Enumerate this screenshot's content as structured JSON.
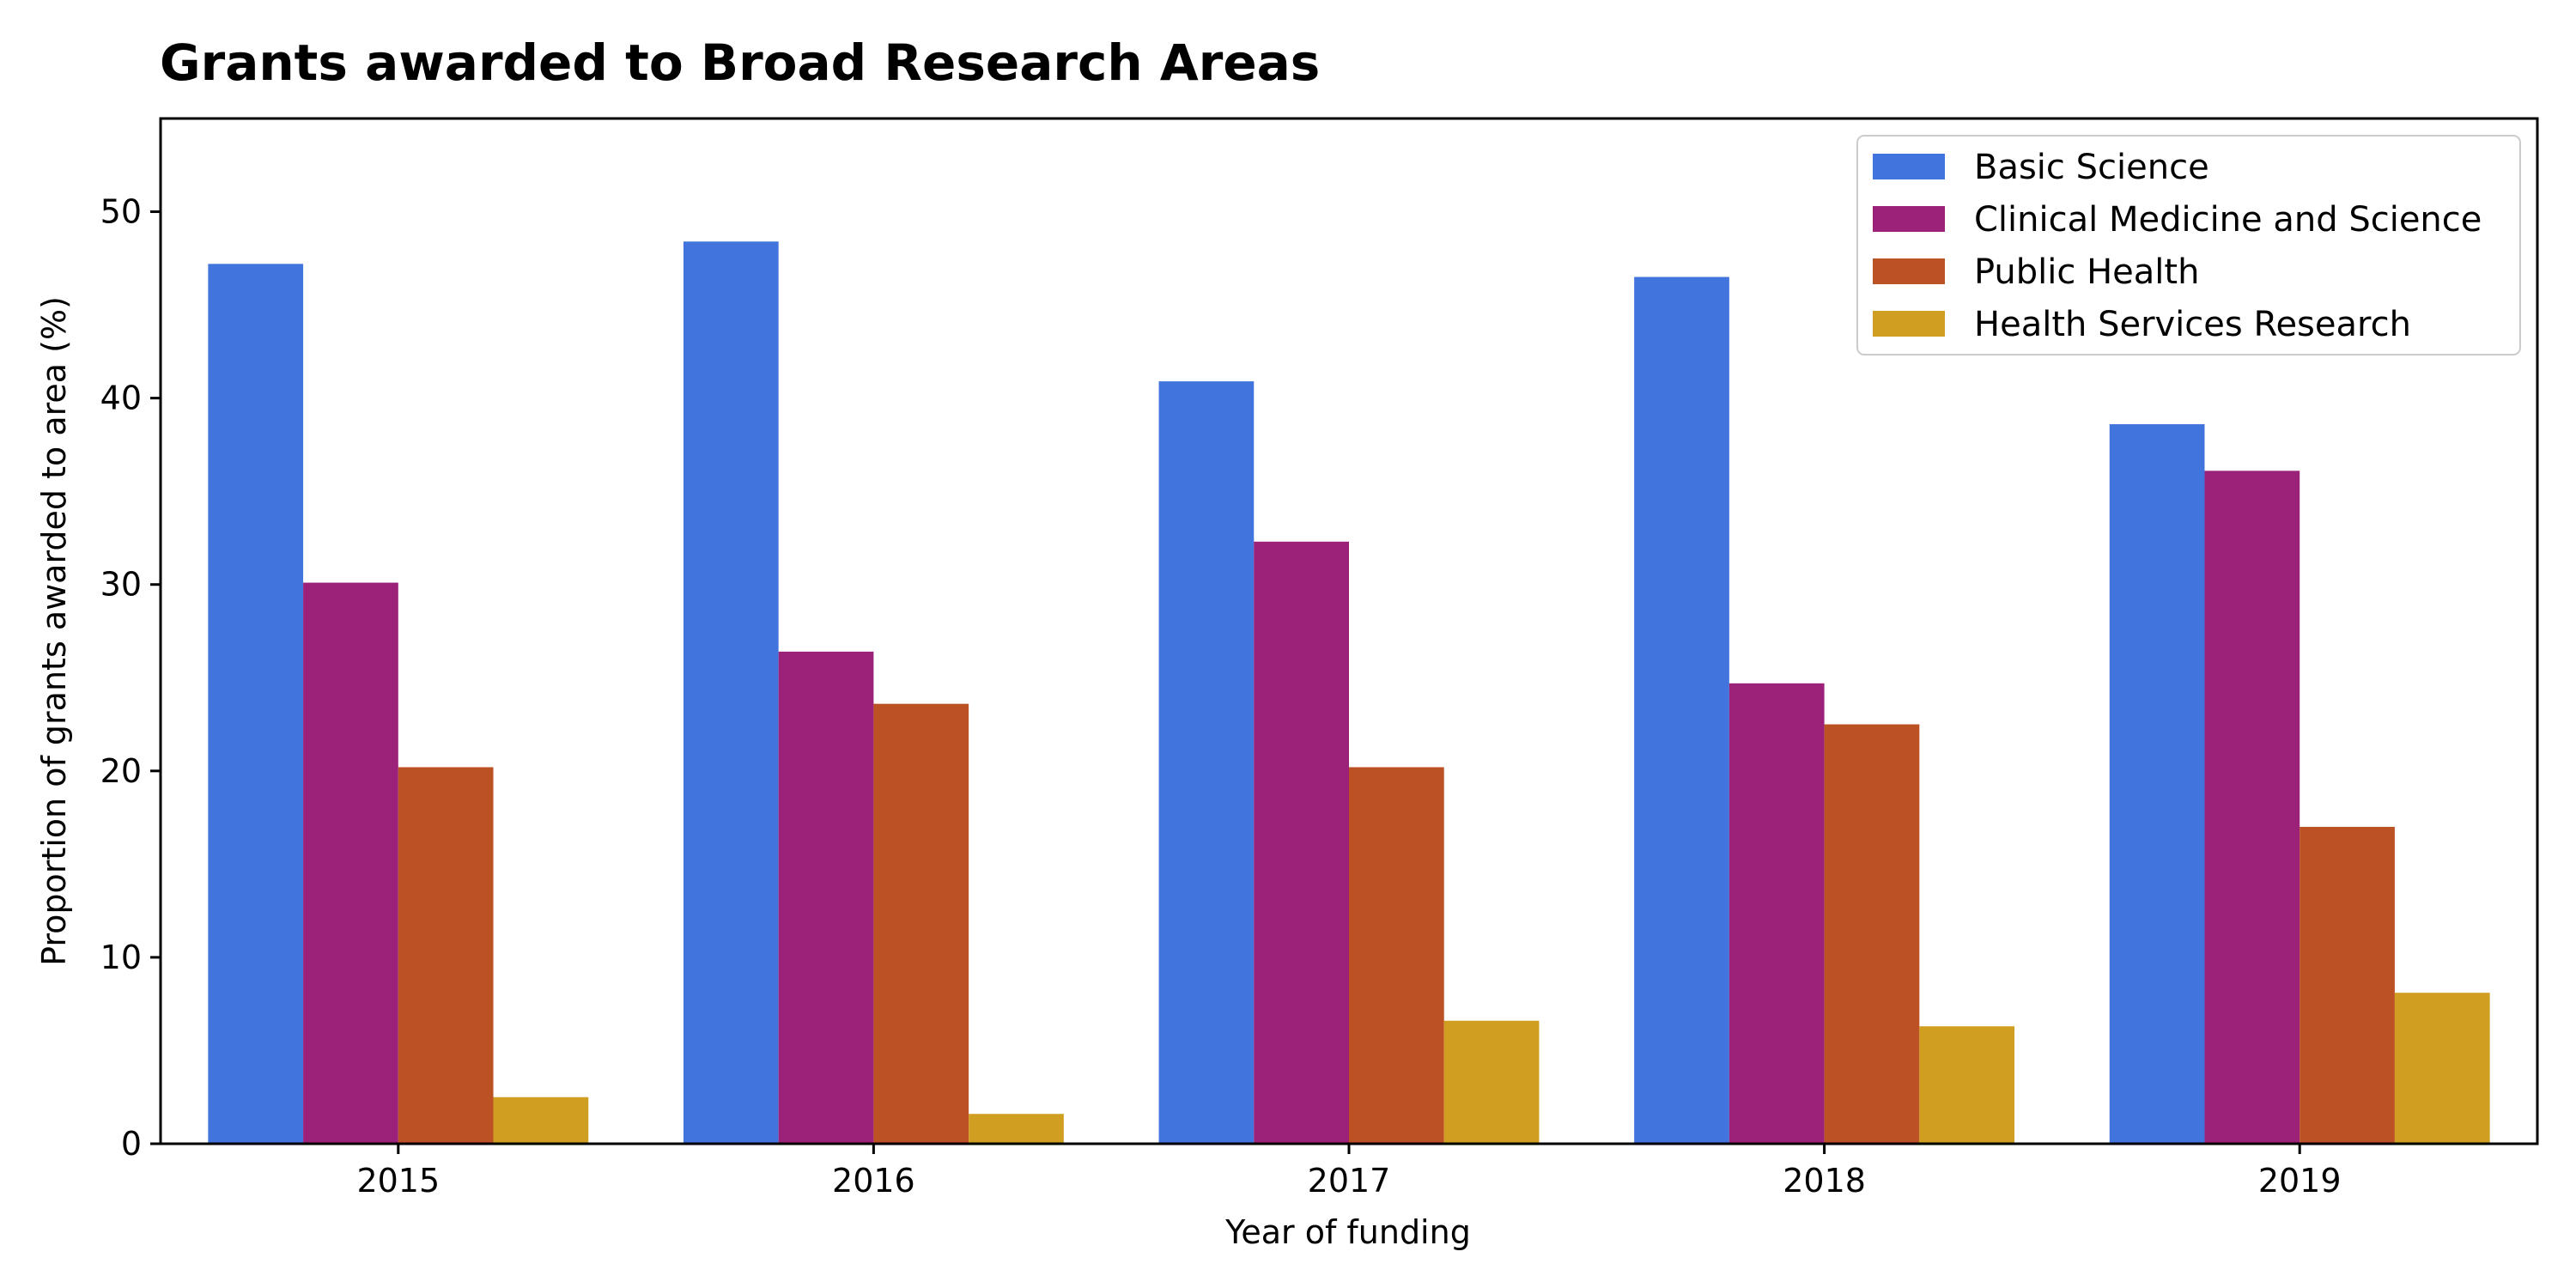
{
  "chart_data": {
    "type": "bar",
    "title": "Grants awarded to Broad Research Areas",
    "xlabel": "Year of funding",
    "ylabel": "Proportion of grants awarded to area (%)",
    "categories": [
      "2015",
      "2016",
      "2017",
      "2018",
      "2019"
    ],
    "ylim": [
      0,
      55
    ],
    "yticks": [
      0,
      10,
      20,
      30,
      40,
      50
    ],
    "legend_position": "top-right",
    "series": [
      {
        "name": "Basic Science",
        "color": "#4175dd",
        "values": [
          47.2,
          48.4,
          40.9,
          46.5,
          38.6
        ]
      },
      {
        "name": "Clinical Medicine and Science",
        "color": "#9b2179",
        "values": [
          30.1,
          26.4,
          32.3,
          24.7,
          36.1
        ]
      },
      {
        "name": "Public Health",
        "color": "#bc5124",
        "values": [
          20.2,
          23.6,
          20.2,
          22.5,
          17.0
        ]
      },
      {
        "name": "Health Services Research",
        "color": "#d09e20",
        "values": [
          2.5,
          1.6,
          6.6,
          6.3,
          8.1
        ]
      }
    ]
  }
}
